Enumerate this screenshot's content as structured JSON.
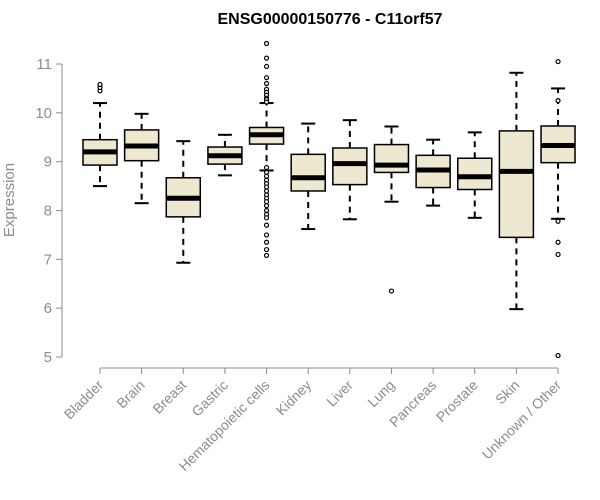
{
  "colors": {
    "box_fill": "#ede8cf",
    "stroke": "#000000",
    "axis": "#8c8c8c",
    "tick_text": "#8c8c8c",
    "title": "#000000"
  },
  "chart_data": {
    "type": "boxplot",
    "title": "ENSG00000150776 - C11orf57",
    "xlabel": "",
    "ylabel": "Expression",
    "ylim": [
      5,
      11
    ],
    "yticks": [
      5,
      6,
      7,
      8,
      9,
      10,
      11
    ],
    "grid": false,
    "categories": [
      "Bladder",
      "Brain",
      "Breast",
      "Gastric",
      "Hematopoietic cells",
      "Kidney",
      "Liver",
      "Lung",
      "Pancreas",
      "Prostate",
      "Skin",
      "Unknown / Other"
    ],
    "boxes": [
      {
        "label": "Bladder",
        "whisker_low": 8.5,
        "q1": 8.93,
        "median": 9.2,
        "q3": 9.45,
        "whisker_high": 10.2,
        "outliers": [
          10.45,
          10.52,
          10.58
        ]
      },
      {
        "label": "Brain",
        "whisker_low": 8.15,
        "q1": 9.02,
        "median": 9.32,
        "q3": 9.65,
        "whisker_high": 9.98,
        "outliers": []
      },
      {
        "label": "Breast",
        "whisker_low": 6.93,
        "q1": 7.87,
        "median": 8.25,
        "q3": 8.67,
        "whisker_high": 9.42,
        "outliers": []
      },
      {
        "label": "Gastric",
        "whisker_low": 8.72,
        "q1": 8.95,
        "median": 9.12,
        "q3": 9.3,
        "whisker_high": 9.55,
        "outliers": []
      },
      {
        "label": "Hematopoietic cells",
        "whisker_low": 8.82,
        "q1": 9.36,
        "median": 9.55,
        "q3": 9.7,
        "whisker_high": 10.2,
        "outliers": [
          11.42,
          11.12,
          10.95,
          10.72,
          10.6,
          10.48,
          10.42,
          10.36,
          10.3,
          10.27,
          10.22,
          8.88,
          8.78,
          8.7,
          8.62,
          8.55,
          8.48,
          8.4,
          8.32,
          8.25,
          8.18,
          8.1,
          8.0,
          7.92,
          7.85,
          7.7,
          7.5,
          7.35,
          7.2,
          7.08
        ]
      },
      {
        "label": "Kidney",
        "whisker_low": 7.62,
        "q1": 8.4,
        "median": 8.67,
        "q3": 9.15,
        "whisker_high": 9.78,
        "outliers": []
      },
      {
        "label": "Liver",
        "whisker_low": 7.82,
        "q1": 8.53,
        "median": 8.96,
        "q3": 9.28,
        "whisker_high": 9.85,
        "outliers": []
      },
      {
        "label": "Lung",
        "whisker_low": 8.18,
        "q1": 8.78,
        "median": 8.93,
        "q3": 9.35,
        "whisker_high": 9.72,
        "outliers": [
          6.35
        ]
      },
      {
        "label": "Pancreas",
        "whisker_low": 8.1,
        "q1": 8.47,
        "median": 8.83,
        "q3": 9.13,
        "whisker_high": 9.45,
        "outliers": []
      },
      {
        "label": "Prostate",
        "whisker_low": 7.85,
        "q1": 8.43,
        "median": 8.69,
        "q3": 9.07,
        "whisker_high": 9.6,
        "outliers": []
      },
      {
        "label": "Skin",
        "whisker_low": 5.98,
        "q1": 7.45,
        "median": 8.8,
        "q3": 9.63,
        "whisker_high": 10.82,
        "outliers": []
      },
      {
        "label": "Unknown / Other",
        "whisker_low": 7.83,
        "q1": 8.98,
        "median": 9.33,
        "q3": 9.73,
        "whisker_high": 10.5,
        "outliers": [
          11.05,
          10.25,
          7.78,
          7.35,
          7.1,
          5.03
        ]
      }
    ]
  }
}
